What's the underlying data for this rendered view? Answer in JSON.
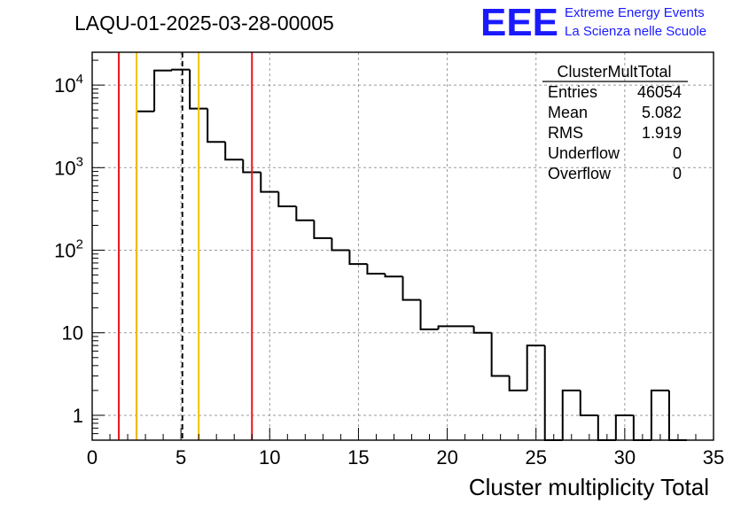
{
  "header": {
    "run_title": "LAQU-01-2025-03-28-00005",
    "logo_text": "EEE",
    "logo_line1": "Extreme Energy Events",
    "logo_line2": "La Scienza nelle Scuole"
  },
  "stats": {
    "title": "ClusterMultTotal",
    "rows": [
      {
        "label": "Entries",
        "value": "46054"
      },
      {
        "label": "Mean",
        "value": "5.082"
      },
      {
        "label": "RMS",
        "value": "1.919"
      },
      {
        "label": "Underflow",
        "value": "0"
      },
      {
        "label": "Overflow",
        "value": "0"
      }
    ]
  },
  "colors": {
    "histogram": "#000000",
    "red_line": "#e8141c",
    "yellow_line": "#f2c200",
    "mean_line": "#000000",
    "grid": "#9a9a9a",
    "logo": "#1a1aff"
  },
  "chart_data": {
    "type": "histogram",
    "title": "LAQU-01-2025-03-28-00005",
    "xlabel": "Cluster multiplicity Total",
    "ylabel": "",
    "xlim": [
      0,
      35
    ],
    "ylim": [
      0.5,
      25000
    ],
    "yscale": "log",
    "grid": true,
    "bin_width": 1,
    "bins_left_edge": [
      2.5,
      3.5,
      4.5,
      5.5,
      6.5,
      7.5,
      8.5,
      9.5,
      10.5,
      11.5,
      12.5,
      13.5,
      14.5,
      15.5,
      16.5,
      17.5,
      18.5,
      19.5,
      20.5,
      21.5,
      22.5,
      23.5,
      24.5,
      25.5,
      26.5,
      27.5,
      28.5,
      29.5,
      30.5,
      31.5,
      32.5
    ],
    "values": [
      4800,
      15000,
      15400,
      5200,
      2050,
      1250,
      880,
      510,
      340,
      230,
      140,
      100,
      68,
      52,
      48,
      25,
      11,
      12,
      12,
      10,
      3,
      2,
      7,
      0,
      2,
      1,
      0,
      1,
      0,
      2,
      0
    ],
    "x_ticks": [
      "0",
      "5",
      "10",
      "15",
      "20",
      "25",
      "30",
      "35"
    ],
    "y_ticks": [
      {
        "value": 1,
        "base": "1",
        "exp": ""
      },
      {
        "value": 10,
        "base": "10",
        "exp": ""
      },
      {
        "value": 100,
        "base": "10",
        "exp": "2"
      },
      {
        "value": 1000,
        "base": "10",
        "exp": "3"
      },
      {
        "value": 10000,
        "base": "10",
        "exp": "4"
      }
    ],
    "vertical_lines": [
      {
        "x": 1.5,
        "color": "red",
        "style": "solid"
      },
      {
        "x": 2.5,
        "color": "yellow",
        "style": "solid"
      },
      {
        "x": 5.082,
        "color": "black",
        "style": "dashed"
      },
      {
        "x": 6.0,
        "color": "yellow",
        "style": "solid"
      },
      {
        "x": 9.0,
        "color": "red",
        "style": "solid"
      }
    ]
  }
}
